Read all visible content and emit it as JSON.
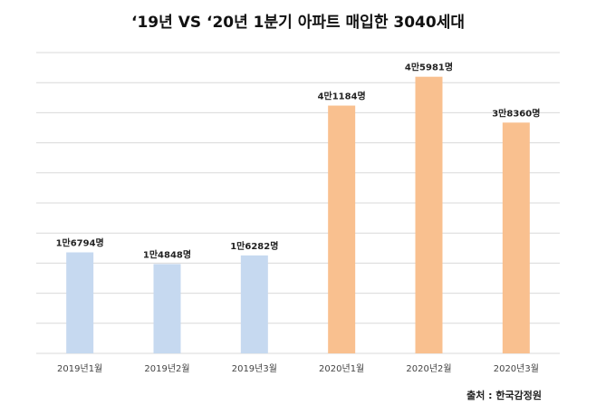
{
  "chart_data": {
    "type": "bar",
    "title": "‘19년 VS ‘20년 1분기 아파트 매입한 3040세대",
    "xlabel": "",
    "ylabel": "",
    "categories": [
      "2019년1월",
      "2019년2월",
      "2019년3월",
      "2020년1월",
      "2020년2월",
      "2020년3월"
    ],
    "values": [
      16794,
      14848,
      16282,
      41184,
      45981,
      38360
    ],
    "value_labels": [
      "1만6794명",
      "1만4848명",
      "1만6282명",
      "4만1184명",
      "4만5981명",
      "3만8360명"
    ],
    "bar_colors": [
      "#c6d9f0",
      "#c6d9f0",
      "#c6d9f0",
      "#f9c08f",
      "#f9c08f",
      "#f9c08f"
    ],
    "ylim": [
      0,
      50000
    ],
    "grid": true,
    "gridline_count": 10,
    "gridline_color": "#d9d9d9",
    "legend": "none"
  },
  "source": "출처 : 한국감정원"
}
